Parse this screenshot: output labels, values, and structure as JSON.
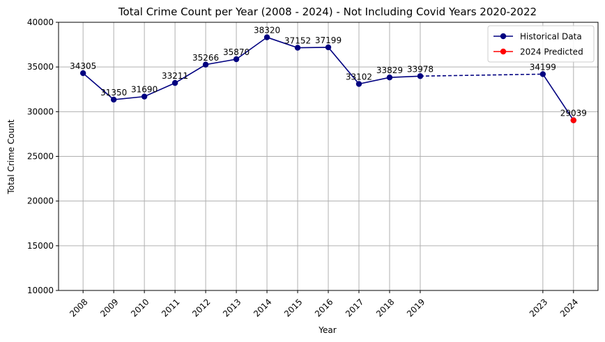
{
  "chart_data": {
    "type": "line",
    "title": "Total Crime Count per Year (2008 - 2024) - Not Including Covid Years 2020-2022",
    "xlabel": "Year",
    "ylabel": "Total Crime Count",
    "xlim": [
      2007.2,
      2024.8
    ],
    "ylim": [
      10000,
      40000
    ],
    "grid": true,
    "legend_position": "top-right",
    "x_ticks": [
      2008,
      2009,
      2010,
      2011,
      2012,
      2013,
      2014,
      2015,
      2016,
      2017,
      2018,
      2019,
      2023,
      2024
    ],
    "y_ticks": [
      10000,
      15000,
      20000,
      25000,
      30000,
      35000,
      40000
    ],
    "series": [
      {
        "name": "Historical Data",
        "color": "#000080",
        "x": [
          2008,
          2009,
          2010,
          2011,
          2012,
          2013,
          2014,
          2015,
          2016,
          2017,
          2018,
          2019
        ],
        "y": [
          34305,
          31350,
          31690,
          33211,
          35266,
          35870,
          38320,
          37152,
          37199,
          33102,
          33829,
          33978
        ]
      },
      {
        "name": "",
        "style": "dashed",
        "color": "#000080",
        "x": [
          2019,
          2023
        ],
        "y": [
          33978,
          34199
        ]
      },
      {
        "name": "",
        "color": "#000080",
        "x": [
          2023,
          2024
        ],
        "y": [
          34199,
          29039
        ]
      },
      {
        "name": "2024 Predicted",
        "color": "#ff0000",
        "x": [
          2024
        ],
        "y": [
          29039
        ]
      }
    ],
    "point_labels": [
      {
        "x": 2008,
        "y": 34305,
        "text": "34305"
      },
      {
        "x": 2009,
        "y": 31350,
        "text": "31350"
      },
      {
        "x": 2010,
        "y": 31690,
        "text": "31690"
      },
      {
        "x": 2011,
        "y": 33211,
        "text": "33211"
      },
      {
        "x": 2012,
        "y": 35266,
        "text": "35266"
      },
      {
        "x": 2013,
        "y": 35870,
        "text": "35870"
      },
      {
        "x": 2014,
        "y": 38320,
        "text": "38320"
      },
      {
        "x": 2015,
        "y": 37152,
        "text": "37152"
      },
      {
        "x": 2016,
        "y": 37199,
        "text": "37199"
      },
      {
        "x": 2017,
        "y": 33102,
        "text": "33102"
      },
      {
        "x": 2018,
        "y": 33829,
        "text": "33829"
      },
      {
        "x": 2019,
        "y": 33978,
        "text": "33978"
      },
      {
        "x": 2023,
        "y": 34199,
        "text": "34199"
      },
      {
        "x": 2024,
        "y": 29039,
        "text": "29039"
      }
    ]
  }
}
